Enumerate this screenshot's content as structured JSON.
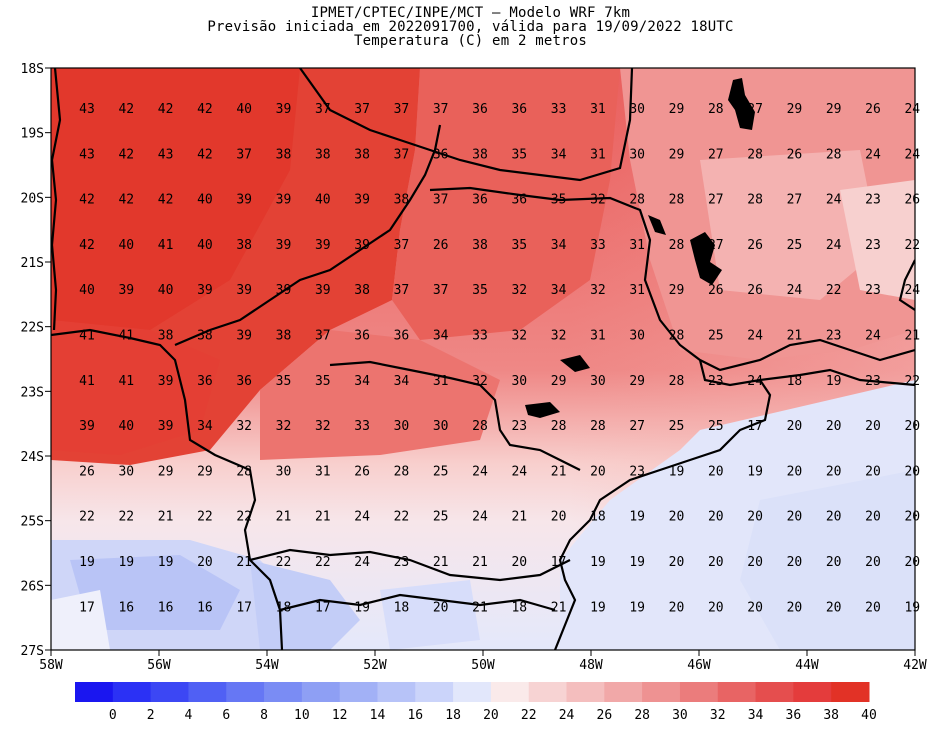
{
  "title": {
    "line1": "IPMET/CPTEC/INPE/MCT — Modelo WRF 7km",
    "line2": "Previsão iniciada em 2022091700, válida para 19/09/2022 18UTC",
    "line3": "Temperatura (C) em 2 metros"
  },
  "axes": {
    "lat_labels": [
      "18S",
      "19S",
      "20S",
      "21S",
      "22S",
      "23S",
      "24S",
      "25S",
      "26S",
      "27S"
    ],
    "lon_labels": [
      "58W",
      "56W",
      "54W",
      "52W",
      "50W",
      "48W",
      "46W",
      "44W",
      "42W"
    ]
  },
  "colorbar": {
    "colors": [
      "#1a16f0",
      "#2b31f5",
      "#3c47f4",
      "#5060f4",
      "#6677f4",
      "#7a8cf4",
      "#8e9ff4",
      "#a2b1f6",
      "#b7c3f8",
      "#cbd4fa",
      "#e2e7fb",
      "#faeaea",
      "#f7d3d3",
      "#f4bebe",
      "#f1a8a8",
      "#ee9292",
      "#eb7c7c",
      "#e86464",
      "#e54e4e",
      "#e43c3c",
      "#e23226"
    ],
    "labels": [
      "0",
      "2",
      "4",
      "6",
      "8",
      "10",
      "12",
      "14",
      "16",
      "18",
      "20",
      "22",
      "24",
      "26",
      "28",
      "30",
      "32",
      "34",
      "36",
      "38",
      "40"
    ]
  },
  "temperature_grid": [
    [
      "43",
      "42",
      "42",
      "42",
      "40",
      "39",
      "37",
      "37",
      "37",
      "37",
      "36",
      "36",
      "33",
      "31",
      "30",
      "29",
      "28",
      "27",
      "29",
      "29",
      "26",
      "24"
    ],
    [
      "43",
      "42",
      "43",
      "42",
      "37",
      "38",
      "38",
      "38",
      "37",
      "36",
      "38",
      "35",
      "34",
      "31",
      "30",
      "29",
      "27",
      "28",
      "26",
      "28",
      "24",
      "24"
    ],
    [
      "42",
      "42",
      "42",
      "40",
      "39",
      "39",
      "40",
      "39",
      "38",
      "37",
      "36",
      "36",
      "35",
      "32",
      "28",
      "28",
      "27",
      "28",
      "27",
      "24",
      "23",
      "26"
    ],
    [
      "42",
      "40",
      "41",
      "40",
      "38",
      "39",
      "39",
      "39",
      "37",
      "26",
      "38",
      "35",
      "34",
      "33",
      "31",
      "28",
      "27",
      "26",
      "25",
      "24",
      "23",
      "22"
    ],
    [
      "40",
      "39",
      "40",
      "39",
      "39",
      "39",
      "39",
      "38",
      "37",
      "37",
      "35",
      "32",
      "34",
      "32",
      "31",
      "29",
      "26",
      "26",
      "24",
      "22",
      "23",
      "24"
    ],
    [
      "41",
      "41",
      "38",
      "38",
      "39",
      "38",
      "37",
      "36",
      "36",
      "34",
      "33",
      "32",
      "32",
      "31",
      "30",
      "28",
      "25",
      "24",
      "21",
      "23",
      "24",
      "21"
    ],
    [
      "41",
      "41",
      "39",
      "36",
      "36",
      "35",
      "35",
      "34",
      "34",
      "31",
      "32",
      "30",
      "29",
      "30",
      "29",
      "28",
      "23",
      "24",
      "18",
      "19",
      "23",
      "22"
    ],
    [
      "39",
      "40",
      "39",
      "34",
      "32",
      "32",
      "32",
      "33",
      "30",
      "30",
      "28",
      "23",
      "28",
      "28",
      "27",
      "25",
      "25",
      "17",
      "20",
      "20",
      "20",
      "20"
    ],
    [
      "26",
      "30",
      "29",
      "29",
      "28",
      "30",
      "31",
      "26",
      "28",
      "25",
      "24",
      "24",
      "21",
      "20",
      "23",
      "19",
      "20",
      "19",
      "20",
      "20",
      "20",
      "20"
    ],
    [
      "22",
      "22",
      "21",
      "22",
      "22",
      "21",
      "21",
      "24",
      "22",
      "25",
      "24",
      "21",
      "20",
      "18",
      "19",
      "20",
      "20",
      "20",
      "20",
      "20",
      "20",
      "20"
    ],
    [
      "19",
      "19",
      "19",
      "20",
      "21",
      "22",
      "22",
      "24",
      "23",
      "21",
      "21",
      "20",
      "17",
      "19",
      "19",
      "20",
      "20",
      "20",
      "20",
      "20",
      "20",
      "20"
    ],
    [
      "17",
      "16",
      "16",
      "16",
      "17",
      "18",
      "17",
      "19",
      "18",
      "20",
      "21",
      "18",
      "21",
      "19",
      "19",
      "20",
      "20",
      "20",
      "20",
      "20",
      "20",
      "19"
    ]
  ]
}
